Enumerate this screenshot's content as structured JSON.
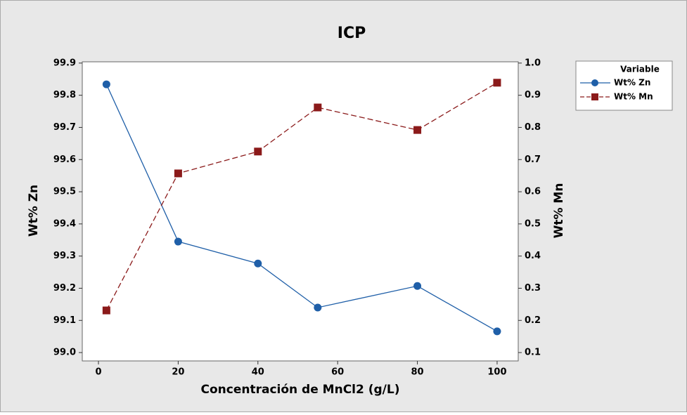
{
  "chart_data": {
    "type": "line",
    "title": "ICP",
    "xlabel": "Concentración de MnCl2 (g/L)",
    "ylabel": "Wt% Zn",
    "y2label": "Wt% Mn",
    "legend_title": "Variable",
    "legend": "right",
    "x": [
      2,
      20,
      40,
      55,
      80,
      100
    ],
    "series": [
      {
        "name": "Wt% Zn",
        "color": "#1f5fa8",
        "marker": "circle",
        "dash": "solid",
        "values": [
          99.834,
          99.345,
          99.277,
          99.14,
          99.207,
          99.066
        ]
      },
      {
        "name": "Wt% Mn",
        "color": "#8b1a1a",
        "marker": "square",
        "dash": "dashed",
        "axis": "y2",
        "values": [
          0.231,
          0.657,
          0.725,
          0.862,
          0.792,
          0.939
        ]
      }
    ],
    "xlim": [
      -4.06,
      105.3
    ],
    "xticks": [
      0,
      20,
      40,
      60,
      80,
      100
    ],
    "ylim": [
      98.974,
      99.904
    ],
    "yticks": [
      {
        "value": 99,
        "label": "99.0"
      },
      99.1,
      99.2,
      99.3,
      99.4,
      99.5,
      99.6,
      99.7,
      99.8,
      99.9
    ],
    "y2lim": [
      0.074,
      1.004
    ],
    "y2ticks": [
      0.1,
      0.2,
      0.3,
      0.4,
      0.5,
      0.6,
      0.7,
      0.8,
      0.9,
      {
        "value": 1,
        "label": "1.0"
      }
    ]
  }
}
